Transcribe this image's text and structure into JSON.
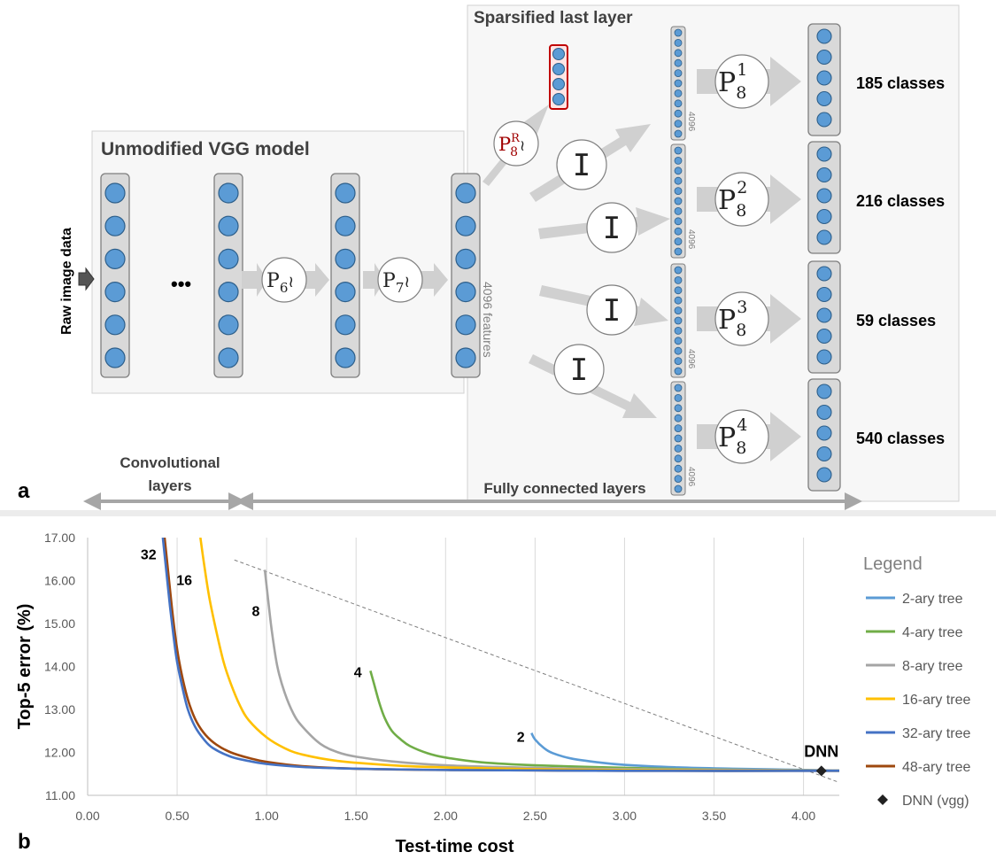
{
  "panel_a": {
    "label": "a",
    "input_label": "Raw image data",
    "vgg_title": "Unmodified VGG model",
    "ellipsis": "•••",
    "p6": "P",
    "p6_sub": "6",
    "p7": "P",
    "p7_sub": "7",
    "tilde": "≀",
    "features_label": "4096 features",
    "sparse_title": "Sparsified last layer",
    "pr_base": "P",
    "pr_sub": "8",
    "pr_sup": "R",
    "identity": "I",
    "block_size": "4096",
    "branches": [
      {
        "p_base": "P",
        "p_sub": "8",
        "p_sup": "1",
        "classes": "185 classes"
      },
      {
        "p_base": "P",
        "p_sub": "8",
        "p_sup": "2",
        "classes": "216 classes"
      },
      {
        "p_base": "P",
        "p_sub": "8",
        "p_sup": "3",
        "classes": "59 classes"
      },
      {
        "p_base": "P",
        "p_sub": "8",
        "p_sup": "4",
        "classes": "540 classes"
      }
    ],
    "conv_label_1": "Convolutional",
    "conv_label_2": "layers",
    "fc_label": "Fully connected layers"
  },
  "panel_b": {
    "label": "b",
    "chart_data": {
      "type": "line",
      "xlabel": "Test-time cost",
      "ylabel": "Top-5 error (%)",
      "xlim": [
        0,
        4.2
      ],
      "ylim": [
        11,
        17
      ],
      "x_ticks": [
        "0.00",
        "0.50",
        "1.00",
        "1.50",
        "2.00",
        "2.50",
        "3.00",
        "3.50",
        "4.00"
      ],
      "y_ticks": [
        "11.00",
        "12.00",
        "13.00",
        "14.00",
        "15.00",
        "16.00",
        "17.00"
      ],
      "grid": "vertical",
      "legend_title": "Legend",
      "legend_position": "right",
      "series": [
        {
          "name": "2-ary tree",
          "color": "#5b9bd5",
          "label": "2",
          "x": [
            2.48,
            2.5,
            2.55,
            2.6,
            2.7,
            2.85,
            3.0,
            3.3,
            3.6,
            3.9,
            4.2
          ],
          "y": [
            12.45,
            12.3,
            12.1,
            11.98,
            11.86,
            11.77,
            11.71,
            11.65,
            11.62,
            11.6,
            11.58
          ]
        },
        {
          "name": "4-ary tree",
          "color": "#70ad47",
          "label": "4",
          "x": [
            1.58,
            1.6,
            1.63,
            1.66,
            1.7,
            1.75,
            1.8,
            1.9,
            2.0,
            2.2,
            2.5,
            3.0,
            3.5,
            4.2
          ],
          "y": [
            13.9,
            13.6,
            13.15,
            12.8,
            12.5,
            12.3,
            12.15,
            11.98,
            11.88,
            11.77,
            11.7,
            11.64,
            11.6,
            11.58
          ]
        },
        {
          "name": "8-ary tree",
          "color": "#a5a5a5",
          "label": "8",
          "x": [
            0.99,
            1.01,
            1.03,
            1.06,
            1.1,
            1.15,
            1.2,
            1.3,
            1.4,
            1.5,
            1.7,
            2.0,
            2.5,
            3.0,
            4.2
          ],
          "y": [
            16.25,
            15.5,
            14.8,
            14.0,
            13.4,
            12.9,
            12.6,
            12.2,
            12.0,
            11.9,
            11.79,
            11.7,
            11.64,
            11.61,
            11.58
          ]
        },
        {
          "name": "16-ary tree",
          "color": "#ffc000",
          "label": "16",
          "x": [
            0.63,
            0.65,
            0.68,
            0.72,
            0.76,
            0.8,
            0.85,
            0.9,
            1.0,
            1.1,
            1.2,
            1.4,
            1.7,
            2.0,
            2.5,
            3.0,
            4.2
          ],
          "y": [
            17.0,
            16.4,
            15.6,
            14.8,
            14.1,
            13.6,
            13.1,
            12.75,
            12.35,
            12.1,
            11.95,
            11.8,
            11.7,
            11.65,
            11.61,
            11.59,
            11.57
          ]
        },
        {
          "name": "32-ary tree",
          "color": "#4472c4",
          "label": "32",
          "x": [
            0.42,
            0.44,
            0.46,
            0.48,
            0.5,
            0.53,
            0.56,
            0.6,
            0.65,
            0.7,
            0.8,
            0.9,
            1.0,
            1.2,
            1.5,
            2.0,
            2.5,
            3.0,
            4.2
          ],
          "y": [
            17.0,
            16.2,
            15.4,
            14.7,
            14.1,
            13.5,
            13.0,
            12.6,
            12.3,
            12.1,
            11.9,
            11.8,
            11.73,
            11.66,
            11.62,
            11.59,
            11.58,
            11.57,
            11.57
          ]
        },
        {
          "name": "48-ary tree",
          "color": "#9e480e",
          "x": [
            0.43,
            0.45,
            0.47,
            0.49,
            0.51,
            0.54,
            0.57,
            0.61,
            0.66,
            0.72,
            0.8,
            0.9,
            1.0,
            1.2,
            1.5,
            2.0,
            2.5,
            3.0,
            4.2
          ],
          "y": [
            17.0,
            16.2,
            15.4,
            14.7,
            14.15,
            13.55,
            13.1,
            12.7,
            12.4,
            12.18,
            12.0,
            11.87,
            11.78,
            11.68,
            11.62,
            11.59,
            11.58,
            11.57,
            11.57
          ]
        }
      ],
      "reference_point": {
        "name": "DNN (vgg)",
        "label": "DNN",
        "x": 4.1,
        "y": 11.57,
        "color": "#222222"
      },
      "reference_line": {
        "x": [
          0.82,
          4.2
        ],
        "y": [
          16.48,
          11.3
        ],
        "color": "#7f7f7f"
      }
    }
  }
}
